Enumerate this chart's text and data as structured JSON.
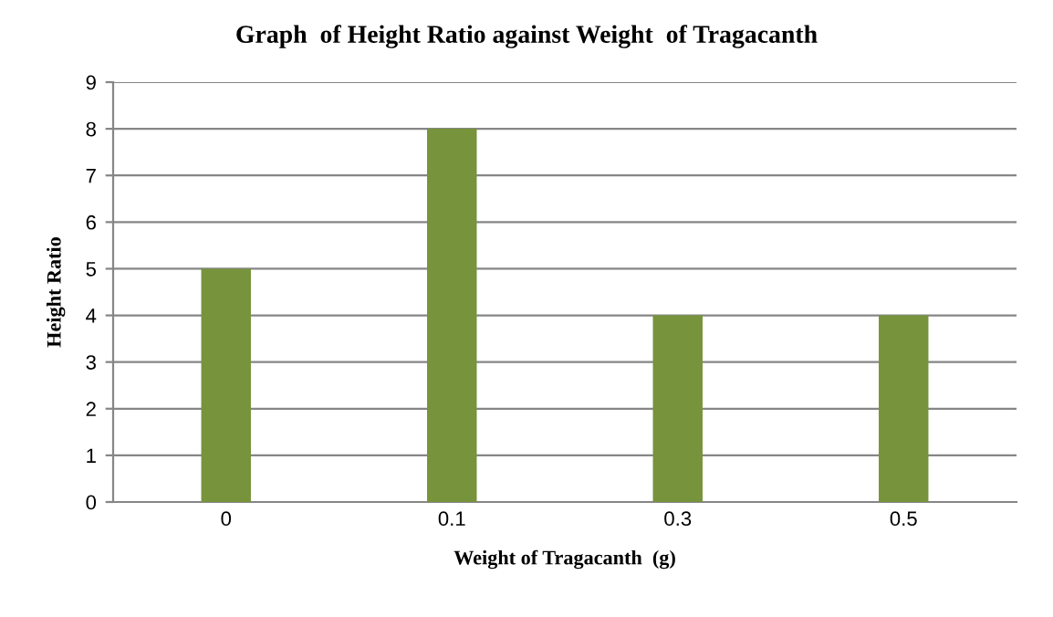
{
  "chart_data": {
    "type": "bar",
    "title": "Graph  of Height Ratio against Weight  of Tragacanth",
    "xlabel": "Weight of Tragacanth  (g)",
    "ylabel": "Height Ratio",
    "categories": [
      "0",
      "0.1",
      "0.3",
      "0.5"
    ],
    "values": [
      5,
      8,
      4,
      4
    ],
    "color": "#77933c",
    "ylim": [
      0,
      9
    ],
    "yticks": [
      0,
      1,
      2,
      3,
      4,
      5,
      6,
      7,
      8,
      9
    ],
    "grid": "y",
    "legend": false
  }
}
